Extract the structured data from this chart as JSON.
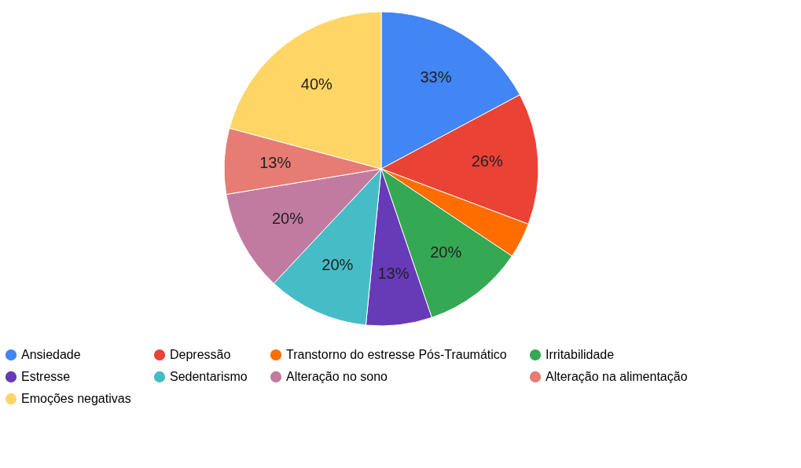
{
  "chart_data": {
    "type": "pie",
    "categories": [
      "Ansiedade",
      "Depressão",
      "Transtorno do estresse Pós-Traumático",
      "Irritabilidade",
      "Estresse",
      "Sedentarismo",
      "Alteração no sono",
      "Alteração na alimentação",
      "Emoções negativas"
    ],
    "values": [
      33,
      26,
      7,
      20,
      13,
      20,
      20,
      13,
      40
    ],
    "value_labels": [
      "33%",
      "26%",
      null,
      "20%",
      "13%",
      "20%",
      "20%",
      "13%",
      "40%"
    ],
    "colors": [
      "#4285f4",
      "#ea4335",
      "#ff6d01",
      "#34a853",
      "#673ab7",
      "#46bdc6",
      "#c27ba0",
      "#e67c73",
      "#ffd666"
    ],
    "legend": "bottom"
  }
}
